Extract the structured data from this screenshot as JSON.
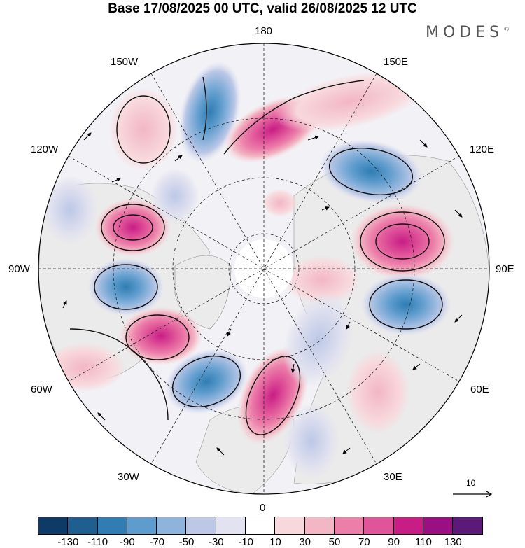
{
  "title": "Base 17/08/2025 00 UTC, valid 26/08/2025 12 UTC",
  "brand": "MODES",
  "brand_mark": "®",
  "longitude_labels": {
    "top": "180",
    "bottom": "0",
    "left": "90W",
    "right": "90E",
    "upper_left": "150W",
    "upper_right": "150E",
    "mid_upper_left": "120W",
    "mid_upper_right": "120E",
    "lower_left": "60W",
    "lower_right": "60E",
    "bottom_left": "30W",
    "bottom_right": "30E"
  },
  "reference_vector": "10",
  "colorbar": {
    "colors": [
      "#0d3b66",
      "#1e5f8f",
      "#2f7db3",
      "#5e9ccd",
      "#8fb4dc",
      "#bcc8e6",
      "#e2e2f0",
      "#ffffff",
      "#f8d8dc",
      "#f2b6c4",
      "#ec7faa",
      "#e05599",
      "#c81d85",
      "#9a0f82",
      "#5c1a78"
    ],
    "ticks": [
      "-130",
      "-110",
      "-90",
      "-70",
      "-50",
      "-30",
      "-10",
      "10",
      "30",
      "50",
      "70",
      "90",
      "110",
      "130"
    ]
  },
  "colors": {
    "positive_strong": "#c81d85",
    "positive_mid": "#ec7faa",
    "positive_weak": "#f6cbd6",
    "negative_strong": "#2f7db3",
    "negative_mid": "#8fb4dc",
    "negative_weak": "#d4d8ec",
    "land": "#eeeeee"
  }
}
